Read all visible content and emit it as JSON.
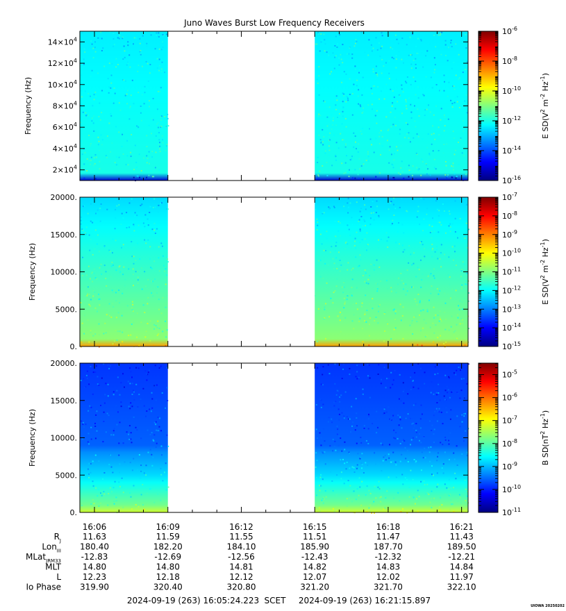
{
  "chart_data": {
    "type": "heatmap",
    "title": "Juno Waves Burst Low Frequency Receivers",
    "time_ticks": [
      "16:06",
      "16:09",
      "16:12",
      "16:15",
      "16:18",
      "16:21"
    ],
    "data_gap": {
      "start": "16:09",
      "end": "16:15"
    },
    "panels": [
      {
        "ylabel": "Frequency (Hz)",
        "ylim": [
          10000,
          150000
        ],
        "yticks": [
          {
            "value": 20000,
            "mant": "2×10",
            "exp": "4"
          },
          {
            "value": 40000,
            "mant": "4×10",
            "exp": "4"
          },
          {
            "value": 60000,
            "mant": "6×10",
            "exp": "4"
          },
          {
            "value": 80000,
            "mant": "8×10",
            "exp": "4"
          },
          {
            "value": 100000,
            "mant": "10×10",
            "exp": "4"
          },
          {
            "value": 120000,
            "mant": "12×10",
            "exp": "4"
          },
          {
            "value": 140000,
            "mant": "14×10",
            "exp": "4"
          }
        ],
        "colorbar": {
          "label_parts": [
            "E SD(V",
            "2",
            " m",
            "-2",
            " Hz",
            "-1",
            ")"
          ],
          "log_range": [
            -16,
            -6
          ],
          "ticks": [
            "-6",
            "-8",
            "-10",
            "-12",
            "-14",
            "-16"
          ]
        }
      },
      {
        "ylabel": "Frequency (Hz)",
        "ylim": [
          0,
          20000
        ],
        "yticks": [
          {
            "value": 0,
            "label": "0."
          },
          {
            "value": 5000,
            "label": "5000."
          },
          {
            "value": 10000,
            "label": "10000."
          },
          {
            "value": 15000,
            "label": "15000."
          },
          {
            "value": 20000,
            "label": "20000."
          }
        ],
        "colorbar": {
          "label_parts": [
            "E SD(V",
            "2",
            " m",
            "-2",
            " Hz",
            "-1",
            ")"
          ],
          "log_range": [
            -15,
            -7
          ],
          "ticks": [
            "-7",
            "-8",
            "-9",
            "-10",
            "-11",
            "-12",
            "-13",
            "-14",
            "-15"
          ]
        }
      },
      {
        "ylabel": "Frequency (Hz)",
        "ylim": [
          0,
          20000
        ],
        "yticks": [
          {
            "value": 0,
            "label": "0."
          },
          {
            "value": 5000,
            "label": "5000."
          },
          {
            "value": 10000,
            "label": "10000."
          },
          {
            "value": 15000,
            "label": "15000."
          },
          {
            "value": 20000,
            "label": "20000."
          }
        ],
        "colorbar": {
          "label_parts": [
            "B SD(nT",
            "2",
            " Hz",
            "-1",
            ")"
          ],
          "log_range": [
            -11,
            -4.5
          ],
          "ticks": [
            "-5",
            "-6",
            "-7",
            "-8",
            "-9",
            "-10",
            "-11"
          ]
        }
      }
    ],
    "ephemeris": [
      {
        "label": "R",
        "sub": "J",
        "values": [
          "11.63",
          "11.59",
          "11.55",
          "11.51",
          "11.47",
          "11.43"
        ]
      },
      {
        "label": "Lon",
        "sub": "III",
        "values": [
          "180.40",
          "182.20",
          "184.10",
          "185.90",
          "187.70",
          "189.50"
        ]
      },
      {
        "label": "MLat",
        "sub": "JRM33",
        "values": [
          "-12.83",
          "-12.69",
          "-12.56",
          "-12.43",
          "-12.32",
          "-12.21"
        ]
      },
      {
        "label": "MLT",
        "sub": "",
        "values": [
          "14.80",
          "14.80",
          "14.81",
          "14.82",
          "14.83",
          "14.84"
        ]
      },
      {
        "label": "L",
        "sub": "",
        "values": [
          "12.23",
          "12.18",
          "12.12",
          "12.07",
          "12.02",
          "11.97"
        ]
      },
      {
        "label": "Io Phase",
        "sub": "",
        "values": [
          "319.90",
          "320.40",
          "320.80",
          "321.20",
          "321.70",
          "322.10"
        ]
      }
    ],
    "footer": {
      "start": "2024-09-19 (263) 16:05:24.223",
      "scet": "SCET",
      "end": "2024-09-19 (263) 16:21:15.897",
      "tag": "UIOWA 20250202"
    }
  }
}
